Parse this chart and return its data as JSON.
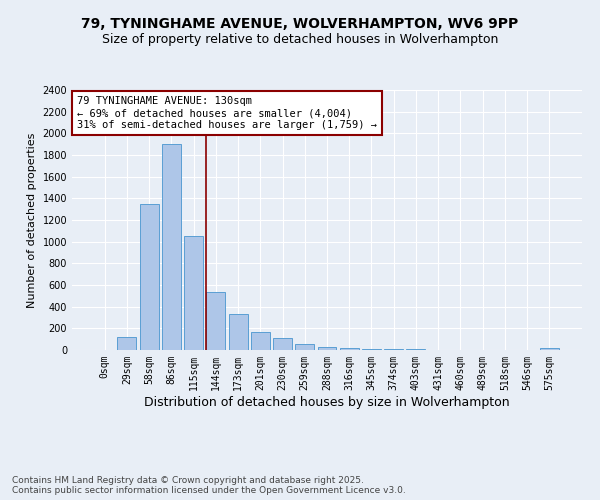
{
  "title1": "79, TYNINGHAME AVENUE, WOLVERHAMPTON, WV6 9PP",
  "title2": "Size of property relative to detached houses in Wolverhampton",
  "xlabel": "Distribution of detached houses by size in Wolverhampton",
  "ylabel": "Number of detached properties",
  "categories": [
    "0sqm",
    "29sqm",
    "58sqm",
    "86sqm",
    "115sqm",
    "144sqm",
    "173sqm",
    "201sqm",
    "230sqm",
    "259sqm",
    "288sqm",
    "316sqm",
    "345sqm",
    "374sqm",
    "403sqm",
    "431sqm",
    "460sqm",
    "489sqm",
    "518sqm",
    "546sqm",
    "575sqm"
  ],
  "values": [
    2,
    120,
    1350,
    1900,
    1050,
    540,
    330,
    170,
    110,
    60,
    30,
    20,
    12,
    10,
    6,
    4,
    4,
    3,
    2,
    2,
    15
  ],
  "bar_color": "#aec6e8",
  "bar_edge_color": "#5a9fd4",
  "vline_x": 4.57,
  "vline_color": "#8b0000",
  "annotation_text": "79 TYNINGHAME AVENUE: 130sqm\n← 69% of detached houses are smaller (4,004)\n31% of semi-detached houses are larger (1,759) →",
  "annotation_box_color": "#ffffff",
  "annotation_box_edge": "#8b0000",
  "annotation_fontsize": 7.5,
  "footer1": "Contains HM Land Registry data © Crown copyright and database right 2025.",
  "footer2": "Contains public sector information licensed under the Open Government Licence v3.0.",
  "bg_color": "#e8eef6",
  "plot_bg_color": "#e8eef6",
  "ylim": [
    0,
    2400
  ],
  "title1_fontsize": 10,
  "title2_fontsize": 9,
  "xlabel_fontsize": 9,
  "ylabel_fontsize": 8,
  "footer_fontsize": 6.5,
  "tick_fontsize": 7
}
